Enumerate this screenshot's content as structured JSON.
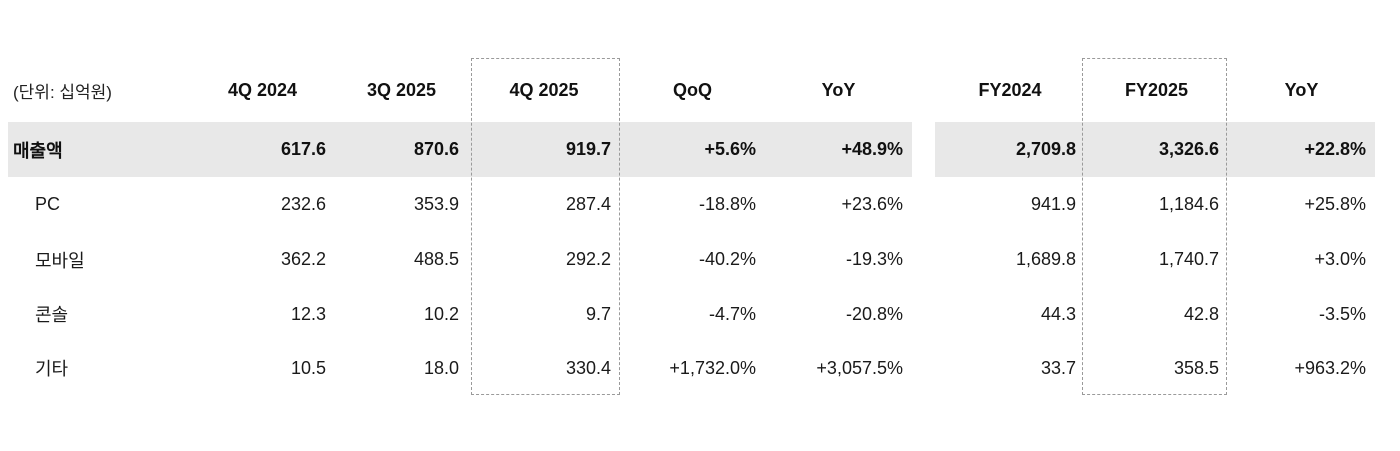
{
  "chart_data": {
    "type": "table",
    "unit_label": "(단위: 십억원)",
    "columns": [
      "4Q 2024",
      "3Q 2025",
      "4Q 2025",
      "QoQ",
      "YoY",
      "FY2024",
      "FY2025",
      "YoY"
    ],
    "rows": [
      {
        "label": "매출액",
        "emphasis": true,
        "values": [
          "617.6",
          "870.6",
          "919.7",
          "+5.6%",
          "+48.9%",
          "2,709.8",
          "3,326.6",
          "+22.8%"
        ]
      },
      {
        "label": "PC",
        "emphasis": false,
        "values": [
          "232.6",
          "353.9",
          "287.4",
          "-18.8%",
          "+23.6%",
          "941.9",
          "1,184.6",
          "+25.8%"
        ]
      },
      {
        "label": "모바일",
        "emphasis": false,
        "values": [
          "362.2",
          "488.5",
          "292.2",
          "-40.2%",
          "-19.3%",
          "1,689.8",
          "1,740.7",
          "+3.0%"
        ]
      },
      {
        "label": "콘솔",
        "emphasis": false,
        "values": [
          "12.3",
          "10.2",
          "9.7",
          "-4.7%",
          "-20.8%",
          "44.3",
          "42.8",
          "-3.5%"
        ]
      },
      {
        "label": "기타",
        "emphasis": false,
        "values": [
          "10.5",
          "18.0",
          "330.4",
          "+1,732.0%",
          "+3,057.5%",
          "33.7",
          "358.5",
          "+963.2%"
        ]
      }
    ],
    "highlighted_columns": [
      "4Q 2025",
      "FY2025"
    ],
    "layout_hints": {
      "highlight_row_color": "#e8e8e8",
      "dashed_box_color": "#9a9a9a",
      "column_groups": [
        "quarterly",
        "annual"
      ]
    }
  }
}
